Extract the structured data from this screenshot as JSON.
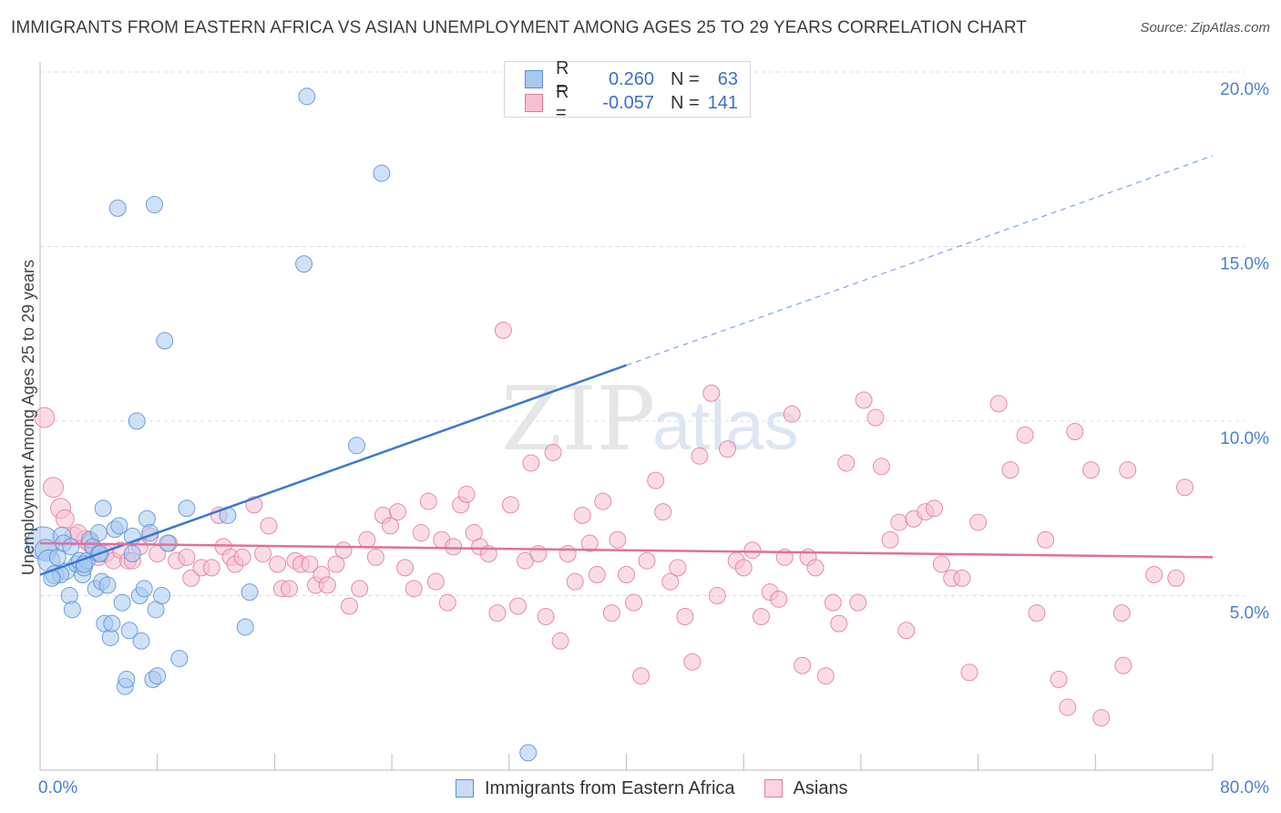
{
  "title": "IMMIGRANTS FROM EASTERN AFRICA VS ASIAN UNEMPLOYMENT AMONG AGES 25 TO 29 YEARS CORRELATION CHART",
  "source": "Source: ZipAtlas.com",
  "watermark": {
    "zip": "ZIP",
    "atlas": "atlas"
  },
  "legend": {
    "series": [
      {
        "r_label": "R =",
        "r_value": "0.260",
        "n_label": "N =",
        "n_value": "63",
        "color": "#a8c8f0",
        "stroke": "#5b8fd6"
      },
      {
        "r_label": "R =",
        "r_value": "-0.057",
        "n_label": "N =",
        "n_value": "141",
        "color": "#f7c0d2",
        "stroke": "#e07aa0"
      }
    ]
  },
  "bottom_legend": [
    "Immigrants from Eastern Africa",
    "Asians"
  ],
  "chart_data": {
    "type": "scatter",
    "title": "IMMIGRANTS FROM EASTERN AFRICA VS ASIAN UNEMPLOYMENT AMONG AGES 25 TO 29 YEARS CORRELATION CHART",
    "xlabel": "",
    "ylabel": "Unemployment Among Ages 25 to 29 years",
    "xlim": [
      0,
      80
    ],
    "ylim": [
      0,
      20
    ],
    "x_tick_labels": [
      "0.0%",
      "80.0%"
    ],
    "y_ticks": [
      5,
      10,
      15,
      20
    ],
    "y_tick_labels": [
      "5.0%",
      "10.0%",
      "15.0%",
      "20.0%"
    ],
    "grid": true,
    "series": [
      {
        "name": "Immigrants from Eastern Africa",
        "color": "#a8c8f0",
        "stroke": "#5b8fd6",
        "trend": {
          "x": [
            0,
            40
          ],
          "y": [
            5.6,
            11.6
          ],
          "extended_to": [
            80,
            17.6
          ]
        },
        "points": [
          [
            0.2,
            6.5,
            18
          ],
          [
            0.4,
            6.3,
            12
          ],
          [
            0.6,
            6.0,
            12
          ],
          [
            1.0,
            5.6,
            10
          ],
          [
            1.2,
            6.1,
            9
          ],
          [
            1.5,
            6.7,
            10
          ],
          [
            1.6,
            6.5,
            9
          ],
          [
            1.8,
            5.7,
            9
          ],
          [
            2.0,
            5.0,
            9
          ],
          [
            2.2,
            4.6,
            9
          ],
          [
            2.5,
            5.9,
            9
          ],
          [
            2.7,
            6.0,
            9
          ],
          [
            2.9,
            5.6,
            9
          ],
          [
            3.0,
            5.8,
            9
          ],
          [
            3.2,
            6.0,
            9
          ],
          [
            3.4,
            6.6,
            9
          ],
          [
            3.6,
            6.4,
            9
          ],
          [
            3.8,
            5.2,
            9
          ],
          [
            4.0,
            6.2,
            9
          ],
          [
            4.0,
            6.8,
            9
          ],
          [
            4.2,
            5.4,
            9
          ],
          [
            4.3,
            7.5,
            9
          ],
          [
            4.4,
            4.2,
            9
          ],
          [
            4.6,
            5.3,
            9
          ],
          [
            4.8,
            3.8,
            9
          ],
          [
            4.9,
            4.2,
            9
          ],
          [
            5.1,
            6.9,
            9
          ],
          [
            5.4,
            7.0,
            9
          ],
          [
            5.6,
            4.8,
            9
          ],
          [
            5.8,
            2.4,
            9
          ],
          [
            5.9,
            2.6,
            9
          ],
          [
            6.1,
            4.0,
            9
          ],
          [
            6.3,
            6.7,
            9
          ],
          [
            6.6,
            10.0,
            9
          ],
          [
            6.8,
            5.0,
            9
          ],
          [
            6.9,
            3.7,
            9
          ],
          [
            7.1,
            5.2,
            9
          ],
          [
            7.3,
            7.2,
            9
          ],
          [
            7.5,
            6.8,
            9
          ],
          [
            7.7,
            2.6,
            9
          ],
          [
            7.9,
            4.6,
            9
          ],
          [
            8.0,
            2.7,
            9
          ],
          [
            8.3,
            5.0,
            9
          ],
          [
            8.7,
            6.5,
            9
          ],
          [
            9.5,
            3.2,
            9
          ],
          [
            10.0,
            7.5,
            9
          ],
          [
            12.8,
            7.3,
            9
          ],
          [
            14.0,
            4.1,
            9
          ],
          [
            14.3,
            5.1,
            9
          ],
          [
            18.0,
            14.5,
            9
          ],
          [
            18.2,
            19.3,
            9
          ],
          [
            21.6,
            9.3,
            9
          ],
          [
            23.3,
            17.1,
            9
          ],
          [
            33.3,
            0.5,
            9
          ],
          [
            7.8,
            16.2,
            9
          ],
          [
            5.3,
            16.1,
            9
          ],
          [
            8.5,
            12.3,
            9
          ],
          [
            1.4,
            5.6,
            9
          ],
          [
            3.0,
            5.9,
            9
          ],
          [
            4.1,
            6.2,
            9
          ],
          [
            2.1,
            6.4,
            9
          ],
          [
            6.3,
            6.2,
            9
          ],
          [
            0.8,
            5.5,
            9
          ]
        ]
      },
      {
        "name": "Asians",
        "color": "#f7c0d2",
        "stroke": "#e07aa0",
        "trend": {
          "x": [
            0,
            80
          ],
          "y": [
            6.5,
            6.1
          ]
        },
        "points": [
          [
            0.3,
            10.1,
            11
          ],
          [
            0.9,
            8.1,
            11
          ],
          [
            1.4,
            7.5,
            11
          ],
          [
            1.7,
            7.2,
            10
          ],
          [
            2.3,
            6.7,
            10
          ],
          [
            3.1,
            6.6,
            10
          ],
          [
            3.4,
            6.5,
            10
          ],
          [
            3.7,
            6.3,
            9
          ],
          [
            4.0,
            6.1,
            9
          ],
          [
            4.5,
            6.2,
            9
          ],
          [
            5.0,
            6.0,
            9
          ],
          [
            5.5,
            6.3,
            9
          ],
          [
            6.0,
            6.0,
            9
          ],
          [
            6.3,
            6.0,
            9
          ],
          [
            6.8,
            6.4,
            9
          ],
          [
            7.5,
            6.7,
            9
          ],
          [
            8.0,
            6.2,
            9
          ],
          [
            8.8,
            6.5,
            9
          ],
          [
            9.3,
            6.0,
            9
          ],
          [
            10.0,
            6.1,
            9
          ],
          [
            10.3,
            5.5,
            9
          ],
          [
            11.0,
            5.8,
            9
          ],
          [
            11.7,
            5.8,
            9
          ],
          [
            12.2,
            7.3,
            9
          ],
          [
            12.5,
            6.4,
            9
          ],
          [
            13.0,
            6.1,
            9
          ],
          [
            13.3,
            5.9,
            9
          ],
          [
            13.8,
            6.1,
            9
          ],
          [
            14.6,
            7.6,
            9
          ],
          [
            15.2,
            6.2,
            9
          ],
          [
            15.6,
            7.0,
            9
          ],
          [
            16.2,
            5.9,
            9
          ],
          [
            16.5,
            5.2,
            9
          ],
          [
            17.0,
            5.2,
            9
          ],
          [
            17.4,
            6.0,
            9
          ],
          [
            17.8,
            5.9,
            9
          ],
          [
            18.4,
            5.9,
            9
          ],
          [
            18.8,
            5.3,
            9
          ],
          [
            19.2,
            5.6,
            9
          ],
          [
            19.6,
            5.3,
            9
          ],
          [
            20.2,
            5.9,
            9
          ],
          [
            20.7,
            6.3,
            9
          ],
          [
            21.1,
            4.7,
            9
          ],
          [
            21.8,
            5.2,
            9
          ],
          [
            22.3,
            6.6,
            9
          ],
          [
            22.9,
            6.1,
            9
          ],
          [
            23.4,
            7.3,
            9
          ],
          [
            23.9,
            7.0,
            9
          ],
          [
            24.4,
            7.4,
            9
          ],
          [
            24.9,
            5.8,
            9
          ],
          [
            25.5,
            5.2,
            9
          ],
          [
            26.0,
            6.8,
            9
          ],
          [
            26.5,
            7.7,
            9
          ],
          [
            27.0,
            5.4,
            9
          ],
          [
            27.4,
            6.6,
            9
          ],
          [
            27.8,
            4.8,
            9
          ],
          [
            28.2,
            6.4,
            9
          ],
          [
            28.7,
            7.6,
            9
          ],
          [
            29.1,
            7.9,
            9
          ],
          [
            29.6,
            6.8,
            9
          ],
          [
            30.0,
            6.4,
            9
          ],
          [
            30.6,
            6.2,
            9
          ],
          [
            31.2,
            4.5,
            9
          ],
          [
            31.6,
            12.6,
            9
          ],
          [
            32.1,
            7.6,
            9
          ],
          [
            32.6,
            4.7,
            9
          ],
          [
            33.1,
            6.0,
            9
          ],
          [
            33.5,
            8.8,
            9
          ],
          [
            34.0,
            6.2,
            9
          ],
          [
            34.5,
            4.4,
            9
          ],
          [
            35.0,
            9.1,
            9
          ],
          [
            35.5,
            3.7,
            9
          ],
          [
            36.0,
            6.2,
            9
          ],
          [
            36.5,
            5.4,
            9
          ],
          [
            37.0,
            7.3,
            9
          ],
          [
            37.5,
            6.5,
            9
          ],
          [
            38.0,
            5.6,
            9
          ],
          [
            38.4,
            7.7,
            9
          ],
          [
            39.0,
            4.5,
            9
          ],
          [
            39.4,
            6.6,
            9
          ],
          [
            40.0,
            5.6,
            9
          ],
          [
            40.5,
            4.8,
            9
          ],
          [
            41.0,
            2.7,
            9
          ],
          [
            41.4,
            6.0,
            9
          ],
          [
            42.0,
            8.3,
            9
          ],
          [
            42.5,
            7.4,
            9
          ],
          [
            43.0,
            5.4,
            9
          ],
          [
            43.5,
            5.8,
            9
          ],
          [
            44.0,
            4.4,
            9
          ],
          [
            44.5,
            3.1,
            9
          ],
          [
            45.0,
            9.0,
            9
          ],
          [
            45.8,
            10.8,
            9
          ],
          [
            46.2,
            5.0,
            9
          ],
          [
            46.9,
            9.2,
            9
          ],
          [
            47.5,
            6.0,
            9
          ],
          [
            48.0,
            5.8,
            9
          ],
          [
            48.6,
            6.3,
            9
          ],
          [
            49.2,
            4.4,
            9
          ],
          [
            49.8,
            5.1,
            9
          ],
          [
            50.4,
            4.9,
            9
          ],
          [
            50.8,
            6.1,
            9
          ],
          [
            51.3,
            10.2,
            9
          ],
          [
            52.0,
            3.0,
            9
          ],
          [
            52.4,
            6.1,
            9
          ],
          [
            52.9,
            5.8,
            9
          ],
          [
            53.6,
            2.7,
            9
          ],
          [
            54.1,
            4.8,
            9
          ],
          [
            54.5,
            4.2,
            9
          ],
          [
            55.0,
            8.8,
            9
          ],
          [
            55.8,
            4.8,
            9
          ],
          [
            56.2,
            10.6,
            9
          ],
          [
            57.0,
            10.1,
            9
          ],
          [
            57.4,
            8.7,
            9
          ],
          [
            58.0,
            6.6,
            9
          ],
          [
            58.6,
            7.1,
            9
          ],
          [
            59.1,
            4.0,
            9
          ],
          [
            59.6,
            7.2,
            9
          ],
          [
            60.4,
            7.4,
            9
          ],
          [
            61.0,
            7.5,
            9
          ],
          [
            61.5,
            5.9,
            9
          ],
          [
            62.2,
            5.5,
            9
          ],
          [
            62.9,
            5.5,
            9
          ],
          [
            63.4,
            2.8,
            9
          ],
          [
            64.0,
            7.1,
            9
          ],
          [
            65.4,
            10.5,
            9
          ],
          [
            66.2,
            8.6,
            9
          ],
          [
            67.2,
            9.6,
            9
          ],
          [
            68.0,
            4.5,
            9
          ],
          [
            68.6,
            6.6,
            9
          ],
          [
            69.5,
            2.6,
            9
          ],
          [
            70.1,
            1.8,
            9
          ],
          [
            70.6,
            9.7,
            9
          ],
          [
            71.7,
            8.6,
            9
          ],
          [
            72.4,
            1.5,
            9
          ],
          [
            74.2,
            8.6,
            9
          ],
          [
            73.8,
            4.5,
            9
          ],
          [
            73.9,
            3.0,
            9
          ],
          [
            76.0,
            5.6,
            9
          ],
          [
            77.5,
            5.5,
            9
          ],
          [
            78.1,
            8.1,
            9
          ],
          [
            2.6,
            6.8,
            9
          ]
        ]
      }
    ]
  }
}
